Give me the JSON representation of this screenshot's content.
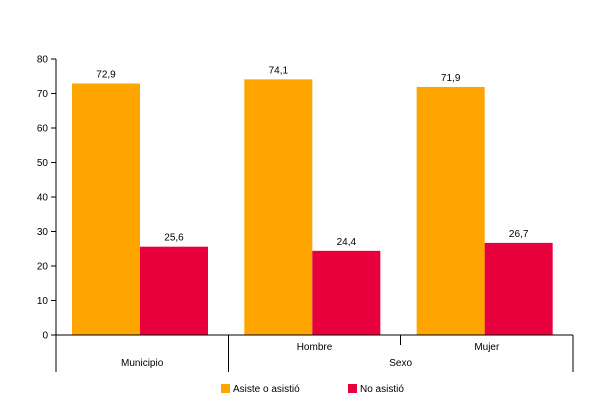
{
  "chart_data": {
    "type": "bar",
    "ylim": [
      0,
      80
    ],
    "yticks": [
      0,
      10,
      20,
      30,
      40,
      50,
      60,
      70,
      80
    ],
    "ytick_labels": [
      "0",
      "10",
      "20",
      "30",
      "40",
      "50",
      "60",
      "70",
      "80"
    ],
    "categories": [
      "Municipio",
      "Hombre",
      "Mujer"
    ],
    "groups": [
      {
        "label": "",
        "categories": [
          "Municipio"
        ]
      },
      {
        "label": "Sexo",
        "categories": [
          "Hombre",
          "Mujer"
        ]
      }
    ],
    "series": [
      {
        "name": "Asiste o asistió",
        "color": "#FFA500",
        "values": [
          72.9,
          74.1,
          71.9
        ],
        "labels": [
          "72,9",
          "74,1",
          "71,9"
        ]
      },
      {
        "name": "No asistió",
        "color": "#E8003C",
        "values": [
          25.6,
          24.4,
          26.7
        ],
        "labels": [
          "25,6",
          "24,4",
          "26,7"
        ]
      }
    ],
    "legend_position": "bottom-center",
    "grid": false
  }
}
